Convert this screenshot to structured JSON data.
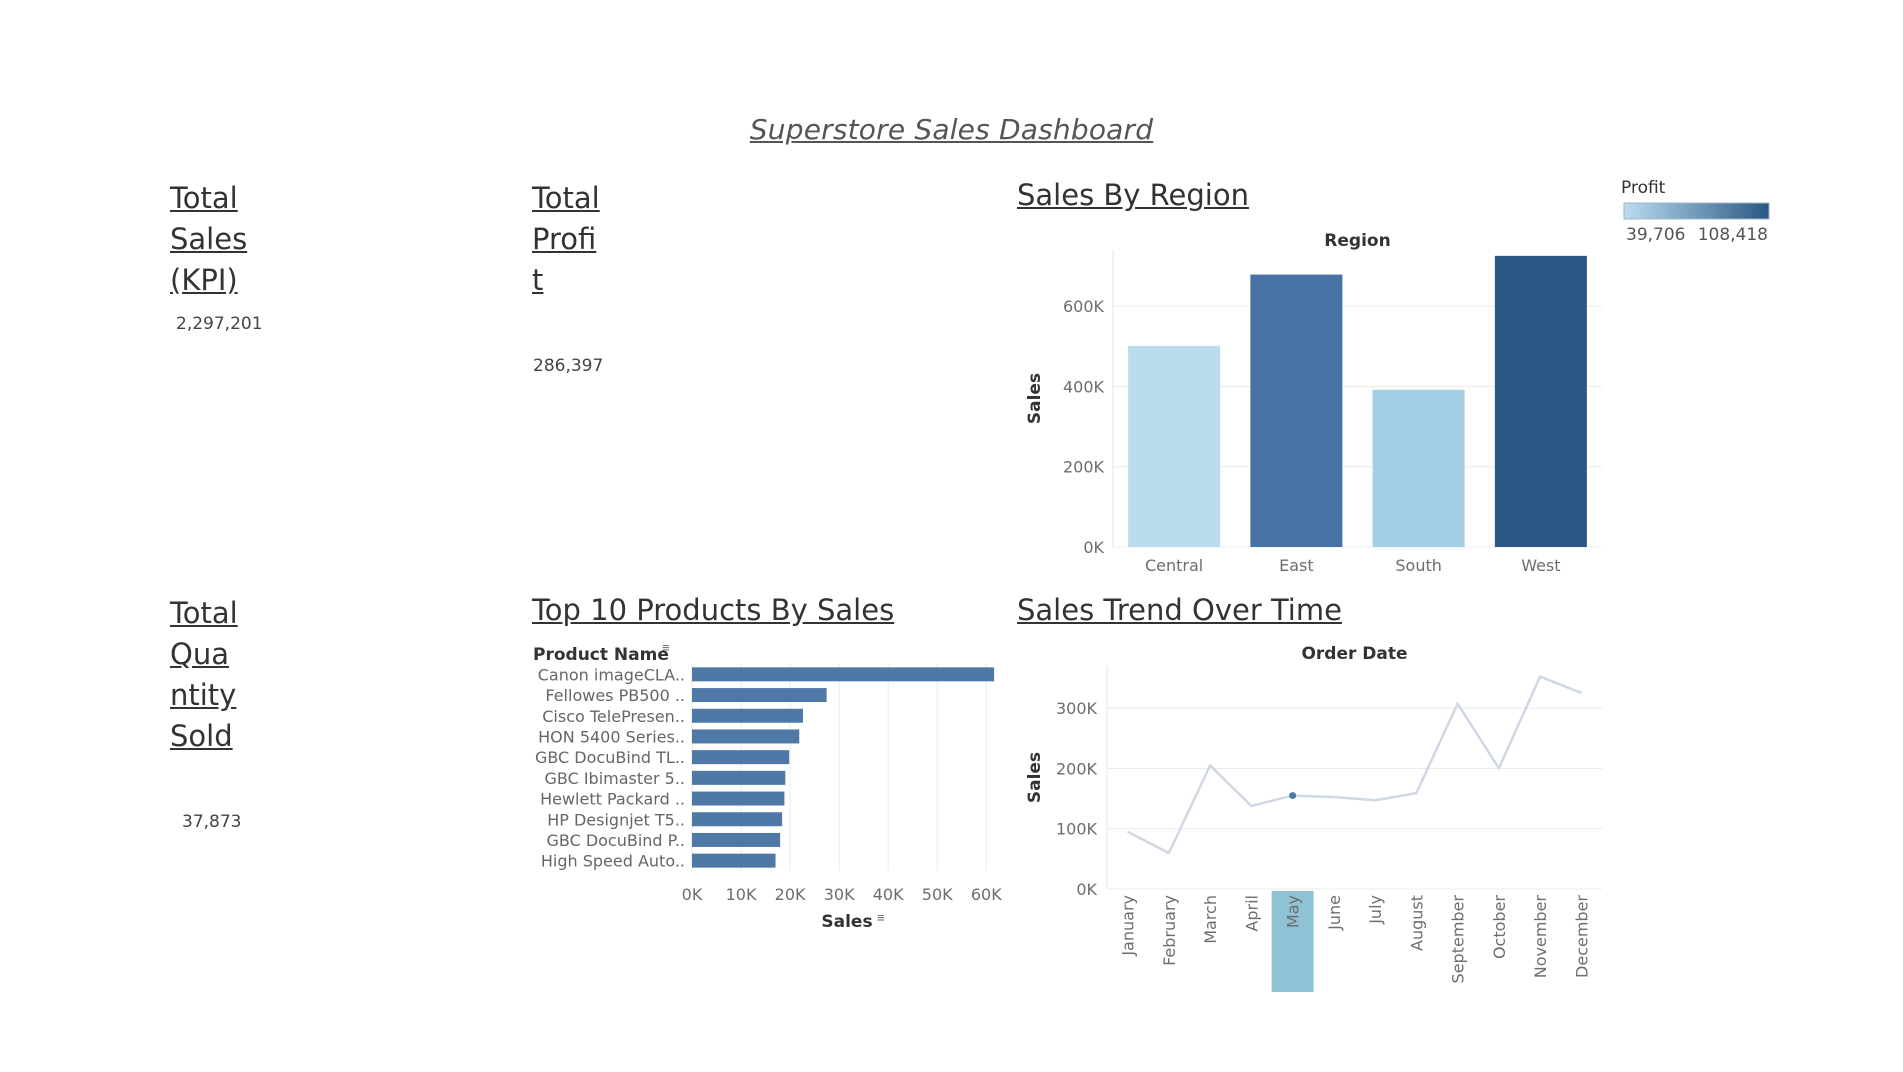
{
  "dashboard": {
    "title": "Superstore Sales Dashboard"
  },
  "kpis": {
    "total_sales": {
      "title": "Total\nSales\n(KPI)",
      "value": "2,297,201"
    },
    "total_profit": {
      "title": "Total\nProfi\nt",
      "value": "286,397"
    },
    "total_quantity": {
      "title": "Total\nQua\nntity\nSold",
      "value": "37,873"
    }
  },
  "sheets": {
    "region": "Sales By Region",
    "products": "Top 10 Products By Sales",
    "trend": "Sales Trend Over Time"
  },
  "legend": {
    "title": "Profit",
    "min_label": "39,706",
    "max_label": "108,418",
    "low_color": "#b9dcef",
    "high_color": "#2a5783"
  },
  "chart_data": [
    {
      "type": "bar",
      "title": "Sales By Region",
      "xlabel": "Region",
      "ylabel": "Sales",
      "categories": [
        "Central",
        "East",
        "South",
        "West"
      ],
      "values": [
        501240,
        678781,
        391722,
        725458
      ],
      "profit": [
        39706,
        91523,
        46749,
        108418
      ],
      "colors": [
        "#b9dcef",
        "#4673a3",
        "#a4cde6",
        "#2a5783"
      ],
      "ylim": [
        0,
        740000
      ],
      "yticks": [
        0,
        200000,
        400000,
        600000
      ],
      "ytick_labels": [
        "0K",
        "200K",
        "400K",
        "600K"
      ],
      "grid": true
    },
    {
      "type": "bar",
      "orientation": "horizontal",
      "title": "Top 10 Products By Sales",
      "ylabel": "Product Name",
      "xlabel": "Sales",
      "categories": [
        "Canon imageCLA..",
        "Fellowes PB500 ..",
        "Cisco TelePresen..",
        "HON 5400 Series..",
        "GBC DocuBind TL..",
        "GBC Ibimaster 5..",
        "Hewlett Packard ..",
        "HP Designjet T5..",
        "GBC DocuBind P..",
        "High Speed Auto.."
      ],
      "values": [
        61600,
        27453,
        22638,
        21870,
        19823,
        19024,
        18840,
        18374,
        17965,
        17030
      ],
      "color": "#4e79a7",
      "xlim": [
        0,
        63000
      ],
      "xticks": [
        0,
        10000,
        20000,
        30000,
        40000,
        50000,
        60000
      ],
      "xtick_labels": [
        "0K",
        "10K",
        "20K",
        "30K",
        "40K",
        "50K",
        "60K"
      ],
      "grid": true
    },
    {
      "type": "line",
      "title": "Sales Trend Over Time",
      "xlabel": "Order Date",
      "ylabel": "Sales",
      "categories": [
        "January",
        "February",
        "March",
        "April",
        "May",
        "June",
        "July",
        "August",
        "September",
        "October",
        "November",
        "December"
      ],
      "values": [
        94925,
        59751,
        205005,
        137762,
        155029,
        152719,
        147238,
        159044,
        307650,
        200323,
        352461,
        325293
      ],
      "highlighted": "May",
      "highlight_color": "#8ec3d5",
      "line_color": "#cfd8e3",
      "point_color": "#4e79a7",
      "ylim": [
        0,
        370000
      ],
      "yticks": [
        0,
        100000,
        200000,
        300000
      ],
      "ytick_labels": [
        "0K",
        "100K",
        "200K",
        "300K"
      ],
      "grid": true
    }
  ]
}
